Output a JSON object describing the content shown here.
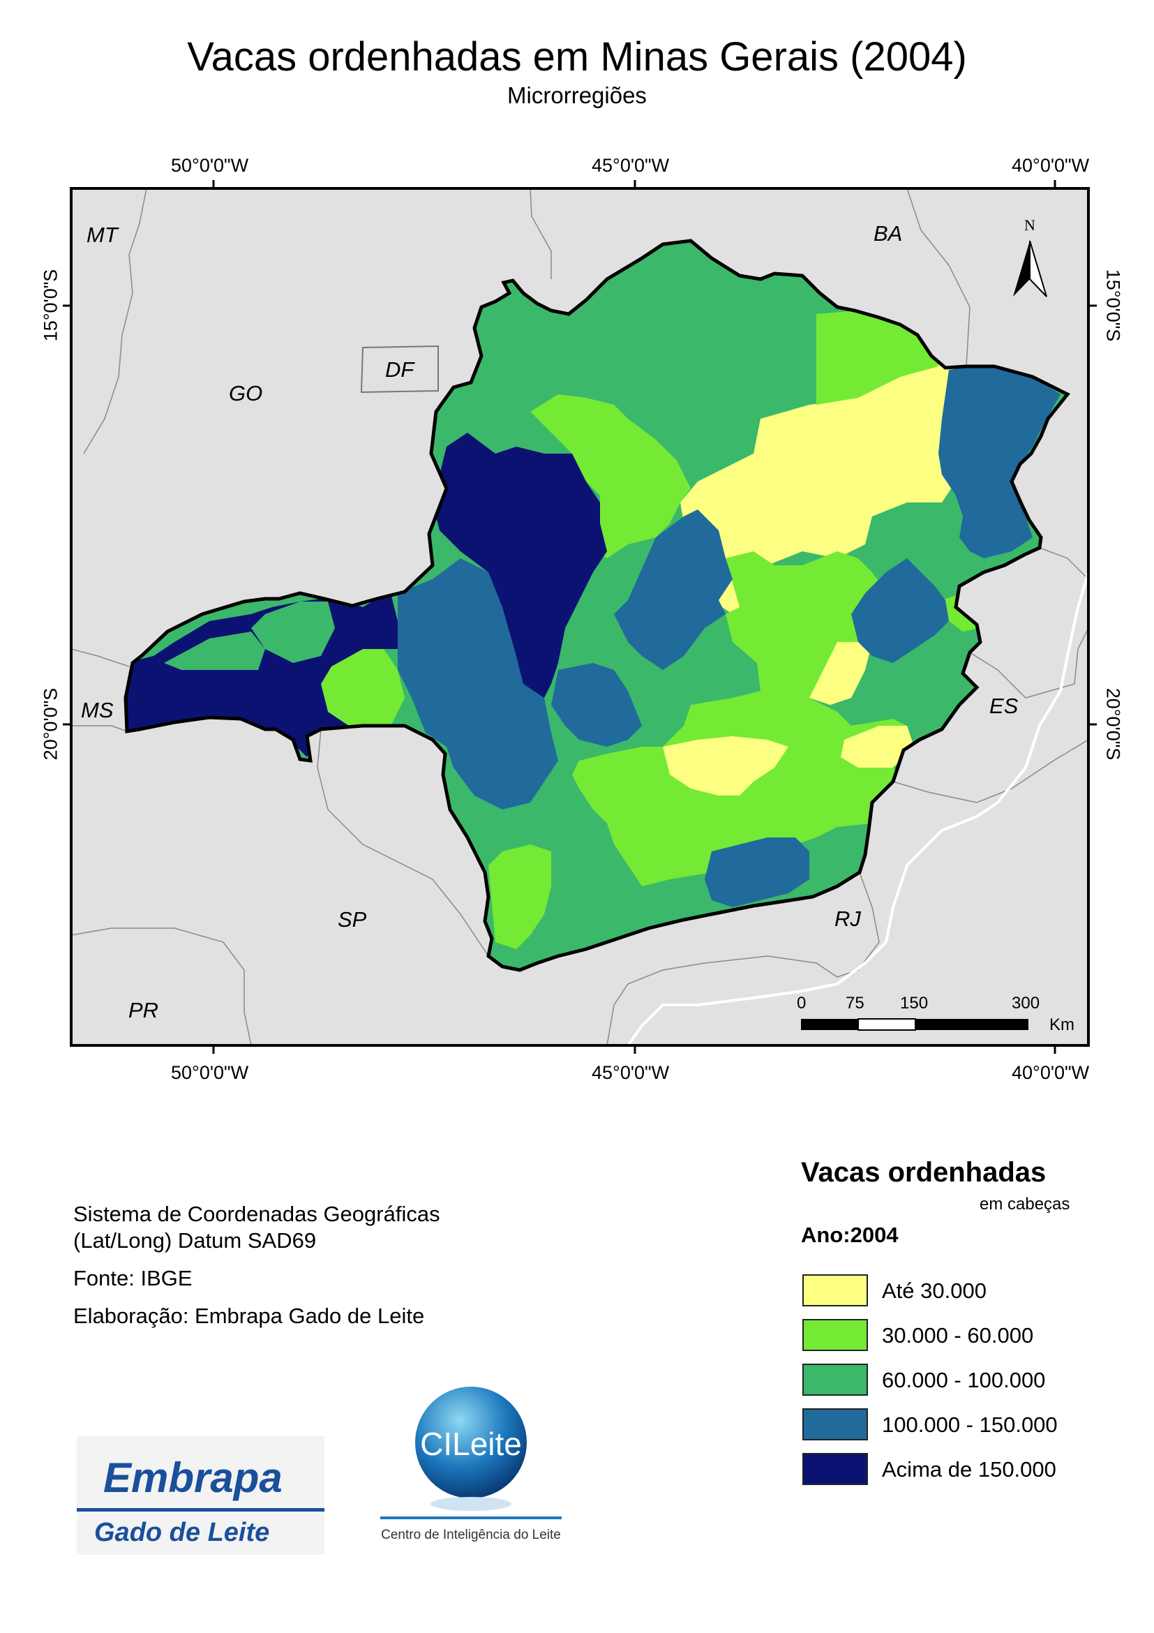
{
  "title": "Vacas ordenhadas em Minas Gerais (2004)",
  "subtitle": "Microrregiões",
  "graticule": {
    "top": [
      "50°0'0\"W",
      "45°0'0\"W",
      "40°0'0\"W"
    ],
    "bottom": [
      "50°0'0\"W",
      "45°0'0\"W",
      "40°0'0\"W"
    ],
    "left": [
      "15°0'0\"S",
      "20°0'0\"S"
    ],
    "right": [
      "15°0'0\"S",
      "20°0'0\"S"
    ]
  },
  "states": [
    "MT",
    "BA",
    "GO",
    "DF",
    "MS",
    "ES",
    "SP",
    "RJ",
    "PR"
  ],
  "north_arrow": "N",
  "scale_bar": {
    "ticks": [
      "0",
      "75",
      "150",
      "300"
    ],
    "unit": "Km"
  },
  "info": {
    "crs_line1": "Sistema de Coordenadas Geográficas",
    "crs_line2": "(Lat/Long) Datum SAD69",
    "source": "Fonte: IBGE",
    "author": "Elaboração: Embrapa Gado de Leite"
  },
  "legend": {
    "title": "Vacas ordenhadas",
    "units": "em cabeças",
    "year": "Ano:2004",
    "classes": [
      {
        "label": "Até 30.000",
        "color": "#fcff82"
      },
      {
        "label": "30.000 - 60.000",
        "color": "#74ea34"
      },
      {
        "label": "60.000 - 100.000",
        "color": "#3bb86a"
      },
      {
        "label": "100.000 - 150.000",
        "color": "#206a9c"
      },
      {
        "label": "Acima de 150.000",
        "color": "#0c1272"
      }
    ]
  },
  "logos": {
    "embrapa_word": "Embrapa",
    "embrapa_sub": "Gado de Leite",
    "cileite_word": "CILeite",
    "cileite_sub": "Centro de Inteligência do Leite"
  },
  "colors": {
    "background_states": "#e1e1e1",
    "border": "#000000"
  }
}
